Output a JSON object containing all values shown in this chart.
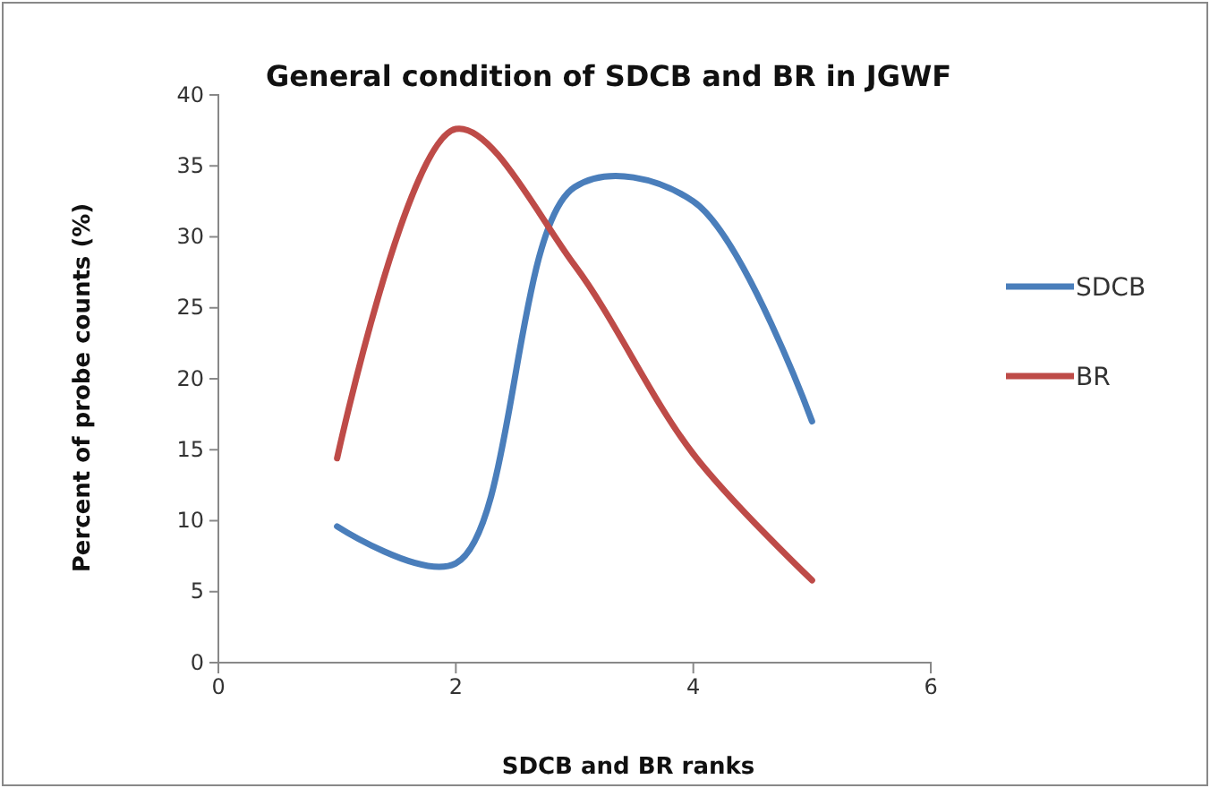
{
  "chart_data": {
    "type": "line",
    "title": "General condition of SDCB and BR in JGWF",
    "xlabel": "SDCB and BR ranks",
    "ylabel": "Percent of probe counts (%)",
    "x": [
      1,
      2,
      3,
      4,
      5
    ],
    "series": [
      {
        "name": "SDCB",
        "color": "#4a7ebb",
        "values": [
          9.6,
          7,
          33.5,
          32.5,
          17
        ]
      },
      {
        "name": "BR",
        "color": "#be4b48",
        "values": [
          14.4,
          37.6,
          28,
          14.7,
          5.8
        ]
      }
    ],
    "xlim": [
      0,
      6
    ],
    "xticks": [
      0,
      2,
      4,
      6
    ],
    "ylim": [
      0,
      40
    ],
    "yticks": [
      0,
      5,
      10,
      15,
      20,
      25,
      30,
      35,
      40
    ],
    "grid": false,
    "legend": "right",
    "marker": "none",
    "line_style": "solid"
  }
}
